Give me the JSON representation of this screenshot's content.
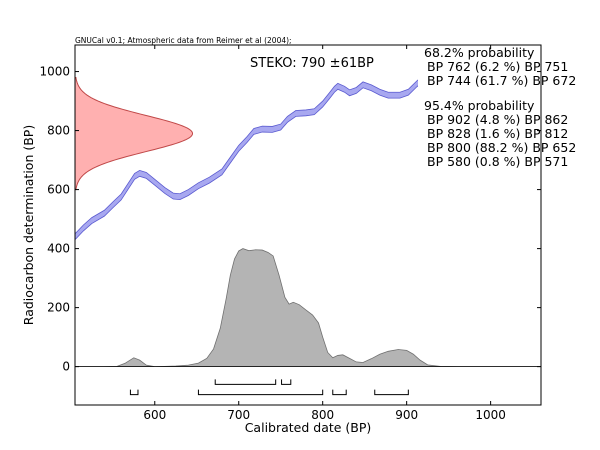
{
  "chart_data": {
    "type": "area",
    "caption": "GNUCal v0.1; Atmospheric data from Reimer et al (2004);",
    "sample_label": "STEKO: 790 ±61BP",
    "xlabel": "Calibrated date (BP)",
    "ylabel": "Radiocarbon determination (BP)",
    "xlim": [
      505,
      1060
    ],
    "ylim": [
      -130,
      1090
    ],
    "xticks": [
      600,
      700,
      800,
      900,
      1000
    ],
    "yticks": [
      0,
      200,
      400,
      600,
      800,
      1000
    ],
    "grid": false,
    "calibration_curve": {
      "band_half_width": 10,
      "points": [
        [
          505,
          440
        ],
        [
          515,
          470
        ],
        [
          525,
          495
        ],
        [
          540,
          520
        ],
        [
          550,
          548
        ],
        [
          560,
          575
        ],
        [
          568,
          610
        ],
        [
          576,
          645
        ],
        [
          582,
          655
        ],
        [
          590,
          648
        ],
        [
          600,
          625
        ],
        [
          612,
          597
        ],
        [
          622,
          578
        ],
        [
          630,
          576
        ],
        [
          640,
          590
        ],
        [
          652,
          613
        ],
        [
          665,
          632
        ],
        [
          680,
          660
        ],
        [
          690,
          700
        ],
        [
          700,
          740
        ],
        [
          710,
          770
        ],
        [
          718,
          797
        ],
        [
          728,
          805
        ],
        [
          740,
          804
        ],
        [
          750,
          812
        ],
        [
          758,
          838
        ],
        [
          768,
          858
        ],
        [
          780,
          860
        ],
        [
          790,
          864
        ],
        [
          800,
          890
        ],
        [
          808,
          918
        ],
        [
          814,
          940
        ],
        [
          818,
          950
        ],
        [
          826,
          940
        ],
        [
          832,
          928
        ],
        [
          840,
          936
        ],
        [
          848,
          955
        ],
        [
          858,
          945
        ],
        [
          868,
          930
        ],
        [
          878,
          920
        ],
        [
          892,
          920
        ],
        [
          902,
          930
        ],
        [
          912,
          958
        ],
        [
          922,
          982
        ],
        [
          935,
          995
        ],
        [
          948,
          1012
        ],
        [
          960,
          1030
        ],
        [
          975,
          1045
        ],
        [
          990,
          1060
        ],
        [
          1005,
          1065
        ],
        [
          1020,
          1066
        ],
        [
          1035,
          1063
        ],
        [
          1048,
          1058
        ],
        [
          1060,
          1060
        ]
      ]
    },
    "radiocarbon_distribution": {
      "mean": 790,
      "sigma": 61,
      "y_from": 600,
      "y_to": 980,
      "peak_date": 645
    },
    "calibrated_distribution": {
      "points": [
        [
          505,
          0
        ],
        [
          540,
          0
        ],
        [
          555,
          1
        ],
        [
          565,
          12
        ],
        [
          575,
          30
        ],
        [
          582,
          22
        ],
        [
          590,
          5
        ],
        [
          600,
          0
        ],
        [
          612,
          1
        ],
        [
          625,
          2
        ],
        [
          640,
          5
        ],
        [
          652,
          12
        ],
        [
          662,
          28
        ],
        [
          670,
          60
        ],
        [
          678,
          130
        ],
        [
          685,
          230
        ],
        [
          690,
          310
        ],
        [
          695,
          365
        ],
        [
          700,
          392
        ],
        [
          705,
          400
        ],
        [
          712,
          393
        ],
        [
          720,
          396
        ],
        [
          728,
          395
        ],
        [
          735,
          387
        ],
        [
          741,
          375
        ],
        [
          748,
          310
        ],
        [
          755,
          235
        ],
        [
          760,
          212
        ],
        [
          765,
          218
        ],
        [
          772,
          210
        ],
        [
          780,
          192
        ],
        [
          788,
          175
        ],
        [
          795,
          148
        ],
        [
          800,
          100
        ],
        [
          806,
          48
        ],
        [
          812,
          30
        ],
        [
          818,
          38
        ],
        [
          824,
          40
        ],
        [
          832,
          28
        ],
        [
          840,
          16
        ],
        [
          848,
          14
        ],
        [
          858,
          27
        ],
        [
          868,
          42
        ],
        [
          878,
          52
        ],
        [
          890,
          58
        ],
        [
          900,
          55
        ],
        [
          908,
          42
        ],
        [
          916,
          22
        ],
        [
          925,
          6
        ],
        [
          940,
          1
        ],
        [
          960,
          0
        ],
        [
          1060,
          0
        ]
      ]
    },
    "hpd_ranges": {
      "68.2": [
        [
          762,
          751
        ],
        [
          744,
          672
        ]
      ],
      "95.4": [
        [
          902,
          862
        ],
        [
          828,
          812
        ],
        [
          800,
          652
        ],
        [
          580,
          571
        ]
      ]
    },
    "legend": {
      "placement": "top-right",
      "sections": [
        {
          "title": "68.2% probability",
          "lines": [
            "BP 762 (6.2 %) BP 751",
            "BP 744 (61.7 %) BP 672"
          ]
        },
        {
          "title": "95.4% probability",
          "lines": [
            "BP 902 (4.8 %) BP 862",
            "BP 828 (1.6 %) BP 812",
            "BP 800 (88.2 %) BP 652",
            "BP 580 (0.8 %) BP 571"
          ]
        }
      ]
    },
    "colors": {
      "curve_band": "#a8a8f0",
      "curve_edge": "#5a5ad0",
      "radiocarbon_fill": "#ffb0b0",
      "radiocarbon_edge": "#c04848",
      "calibrated_fill": "#b4b4b4",
      "calibrated_edge": "#707070",
      "axis": "#000000"
    }
  }
}
